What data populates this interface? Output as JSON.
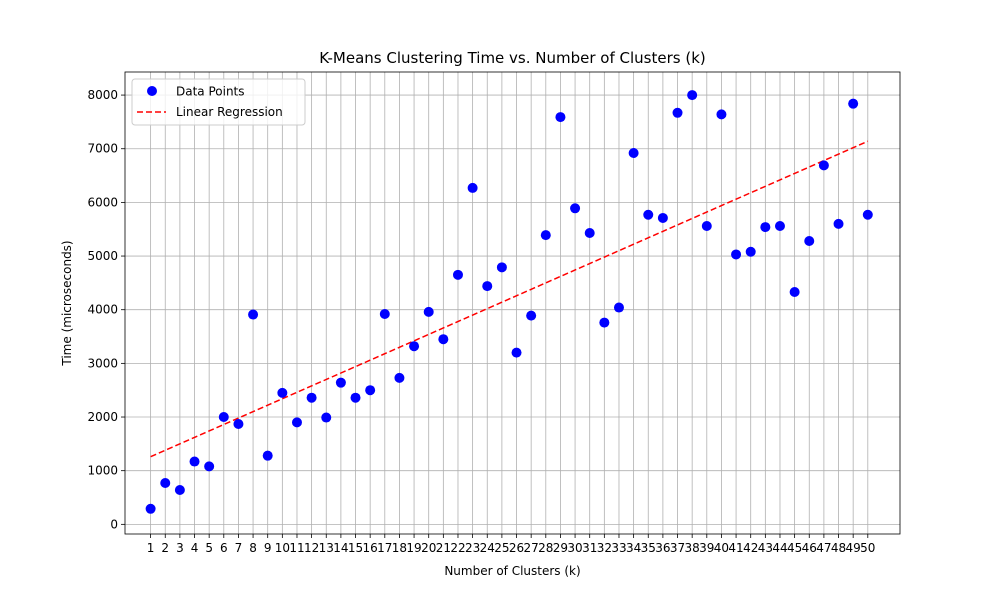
{
  "chart_data": {
    "type": "scatter",
    "title": "K-Means Clustering Time vs. Number of Clusters (k)",
    "xlabel": "Number of Clusters (k)",
    "ylabel": "Time (microseconds)",
    "xlim": [
      -0.75,
      52.2
    ],
    "ylim": [
      -180,
      8430
    ],
    "xticks": [
      1,
      2,
      3,
      4,
      5,
      6,
      7,
      8,
      9,
      10,
      11,
      12,
      13,
      14,
      15,
      16,
      17,
      18,
      19,
      20,
      21,
      22,
      23,
      24,
      25,
      26,
      27,
      28,
      29,
      30,
      31,
      32,
      33,
      34,
      35,
      36,
      37,
      38,
      39,
      40,
      41,
      42,
      43,
      44,
      45,
      46,
      47,
      48,
      49,
      50
    ],
    "yticks": [
      0,
      1000,
      2000,
      3000,
      4000,
      5000,
      6000,
      7000,
      8000
    ],
    "grid": true,
    "legend_position": "top-left",
    "series": [
      {
        "name": "Data Points",
        "kind": "scatter",
        "color": "#0000ff",
        "x": [
          1,
          2,
          3,
          4,
          5,
          6,
          7,
          8,
          9,
          10,
          11,
          12,
          13,
          14,
          15,
          16,
          17,
          18,
          19,
          20,
          21,
          22,
          23,
          24,
          25,
          26,
          27,
          28,
          29,
          30,
          31,
          32,
          33,
          34,
          35,
          36,
          37,
          38,
          39,
          40,
          41,
          42,
          43,
          44,
          45,
          46,
          47,
          48,
          49,
          50
        ],
        "y": [
          290,
          770,
          640,
          1170,
          1080,
          2000,
          1870,
          3910,
          1280,
          2450,
          1900,
          2360,
          1990,
          2640,
          2360,
          2500,
          3920,
          2730,
          3320,
          3960,
          3450,
          4650,
          6270,
          4440,
          4790,
          3200,
          3890,
          5390,
          7590,
          5890,
          5430,
          3760,
          4040,
          6920,
          5770,
          5710,
          7670,
          8000,
          5560,
          7640,
          5030,
          5080,
          5540,
          5560,
          4330,
          5280,
          6690,
          5600,
          7840,
          5770
        ]
      },
      {
        "name": "Linear Regression",
        "kind": "line",
        "color": "#ff0000",
        "dash": "dashed",
        "x": [
          1,
          50
        ],
        "y": [
          1260,
          7140
        ]
      }
    ]
  }
}
